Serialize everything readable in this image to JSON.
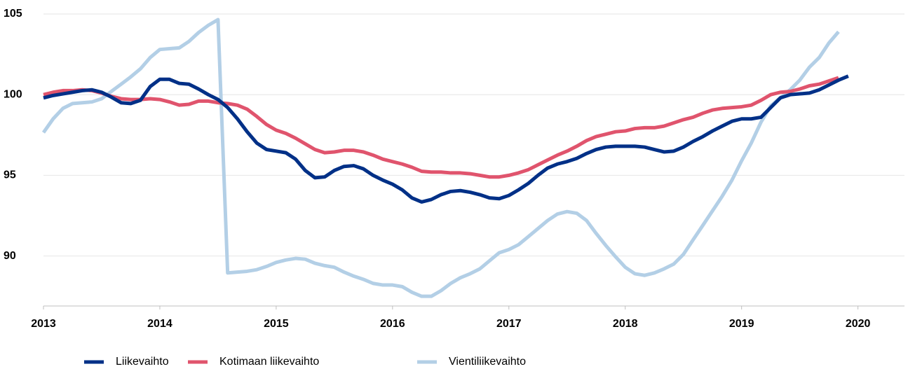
{
  "chart_data": {
    "type": "line",
    "x": [
      2013,
      2013.083,
      2013.167,
      2013.25,
      2013.333,
      2013.417,
      2013.5,
      2013.583,
      2013.667,
      2013.75,
      2013.833,
      2013.917,
      2014,
      2014.083,
      2014.167,
      2014.25,
      2014.333,
      2014.417,
      2014.5,
      2014.583,
      2014.667,
      2014.75,
      2014.833,
      2014.917,
      2015,
      2015.083,
      2015.167,
      2015.25,
      2015.333,
      2015.417,
      2015.5,
      2015.583,
      2015.667,
      2015.75,
      2015.833,
      2015.917,
      2016,
      2016.083,
      2016.167,
      2016.25,
      2016.333,
      2016.417,
      2016.5,
      2016.583,
      2016.667,
      2016.75,
      2016.833,
      2016.917,
      2017,
      2017.083,
      2017.167,
      2017.25,
      2017.333,
      2017.417,
      2017.5,
      2017.583,
      2017.667,
      2017.75,
      2017.833,
      2017.917,
      2018,
      2018.083,
      2018.167,
      2018.25,
      2018.333,
      2018.417,
      2018.5,
      2018.583,
      2018.667,
      2018.75,
      2018.833,
      2018.917,
      2019,
      2019.083,
      2019.167,
      2019.25,
      2019.333,
      2019.417,
      2019.5,
      2019.583,
      2019.667,
      2019.75,
      2019.833,
      2019.917
    ],
    "series": [
      {
        "name": "Liikevaihto",
        "color": "#003087",
        "values": [
          99.8,
          99.95,
          100.05,
          100.15,
          100.25,
          100.3,
          100.15,
          99.85,
          99.5,
          99.45,
          99.65,
          100.5,
          100.95,
          100.95,
          100.7,
          100.65,
          100.35,
          100.0,
          99.7,
          99.2,
          98.5,
          97.7,
          97.0,
          96.6,
          96.5,
          96.4,
          96.0,
          95.3,
          94.85,
          94.9,
          95.3,
          95.55,
          95.6,
          95.4,
          95.0,
          94.7,
          94.45,
          94.1,
          93.6,
          93.35,
          93.5,
          93.8,
          94.0,
          94.05,
          93.95,
          93.8,
          93.6,
          93.55,
          93.75,
          94.1,
          94.5,
          95.0,
          95.45,
          95.7,
          95.85,
          96.05,
          96.35,
          96.6,
          96.75,
          96.8,
          96.8,
          96.8,
          96.75,
          96.6,
          96.45,
          96.5,
          96.75,
          97.1,
          97.4,
          97.75,
          98.05,
          98.35,
          98.5,
          98.5,
          98.6,
          99.2,
          99.8,
          100.0,
          100.05,
          100.1,
          100.3,
          100.6,
          100.9,
          101.15
        ]
      },
      {
        "name": "Kotimaan liikevaihto",
        "color": "#e0546d",
        "values": [
          100.0,
          100.15,
          100.25,
          100.25,
          100.3,
          100.25,
          100.1,
          99.9,
          99.75,
          99.7,
          99.7,
          99.75,
          99.7,
          99.55,
          99.35,
          99.4,
          99.6,
          99.6,
          99.5,
          99.45,
          99.35,
          99.1,
          98.65,
          98.15,
          97.8,
          97.6,
          97.3,
          96.95,
          96.6,
          96.4,
          96.45,
          96.55,
          96.55,
          96.45,
          96.25,
          96.0,
          95.85,
          95.7,
          95.5,
          95.25,
          95.2,
          95.2,
          95.15,
          95.15,
          95.1,
          95.0,
          94.9,
          94.9,
          95.0,
          95.15,
          95.35,
          95.65,
          95.95,
          96.25,
          96.5,
          96.8,
          97.15,
          97.4,
          97.55,
          97.7,
          97.75,
          97.9,
          97.95,
          97.95,
          98.05,
          98.25,
          98.45,
          98.6,
          98.85,
          99.05,
          99.15,
          99.2,
          99.25,
          99.35,
          99.65,
          100.0,
          100.15,
          100.2,
          100.35,
          100.55,
          100.65,
          100.85,
          101.05,
          null
        ]
      },
      {
        "name": "Vientiliikevaihto",
        "color": "#b3cfe6",
        "values": [
          97.65,
          98.5,
          99.15,
          99.45,
          99.5,
          99.55,
          99.75,
          100.2,
          100.65,
          101.1,
          101.6,
          102.3,
          102.8,
          102.85,
          102.9,
          103.3,
          103.85,
          104.3,
          104.65,
          88.95,
          89.0,
          89.05,
          89.15,
          89.35,
          89.6,
          89.75,
          89.85,
          89.8,
          89.55,
          89.4,
          89.3,
          89.0,
          88.75,
          88.55,
          88.3,
          88.2,
          88.2,
          88.1,
          87.75,
          87.5,
          87.5,
          87.85,
          88.3,
          88.65,
          88.9,
          89.2,
          89.7,
          90.2,
          90.4,
          90.7,
          91.2,
          91.7,
          92.2,
          92.6,
          92.75,
          92.65,
          92.2,
          91.4,
          90.65,
          89.95,
          89.3,
          88.9,
          88.8,
          88.95,
          89.2,
          89.5,
          90.1,
          91.0,
          91.9,
          92.8,
          93.7,
          94.7,
          95.9,
          97.0,
          98.3,
          99.3,
          99.8,
          100.3,
          100.9,
          101.7,
          102.3,
          103.2,
          103.9,
          null
        ]
      }
    ],
    "xlim": [
      2013,
      2020.4
    ],
    "xticks": [
      2013,
      2014,
      2015,
      2016,
      2017,
      2018,
      2019,
      2020
    ],
    "ylim": [
      86.9,
      105
    ],
    "yticks": [
      90,
      95,
      100,
      105
    ],
    "grid": true,
    "legend": "bottom"
  }
}
